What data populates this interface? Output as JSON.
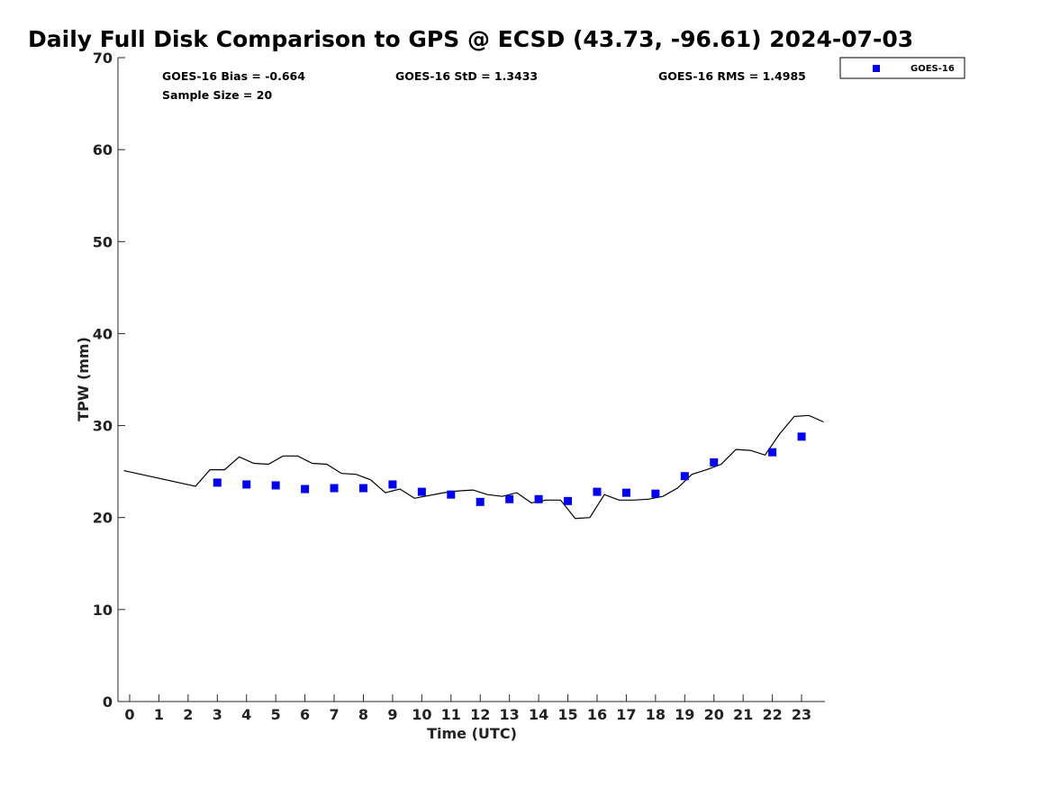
{
  "chart_data": {
    "type": "scatter",
    "title": "Daily Full Disk Comparison to GPS @ ECSD (43.73, -96.61) 2024-07-03",
    "xlabel": "Time (UTC)",
    "ylabel": "TPW (mm)",
    "xlim": [
      -0.4,
      23.8
    ],
    "ylim": [
      0,
      70
    ],
    "x_ticks": [
      "0",
      "1",
      "2",
      "3",
      "4",
      "5",
      "6",
      "7",
      "8",
      "9",
      "10",
      "11",
      "12",
      "13",
      "14",
      "15",
      "16",
      "17",
      "18",
      "19",
      "20",
      "21",
      "22",
      "23"
    ],
    "y_ticks": [
      "0",
      "10",
      "20",
      "30",
      "40",
      "50",
      "60",
      "70"
    ],
    "grid": false,
    "legend_position": "top-right",
    "stats": {
      "bias": "GOES-16 Bias = -0.664",
      "std": "GOES-16 StD = 1.3433",
      "rms": "GOES-16 RMS = 1.4985",
      "sample_size": "Sample Size = 20"
    },
    "series": [
      {
        "name": "GOES-16",
        "kind": "scatter",
        "marker": "square",
        "color": "#0000ee",
        "x": [
          3,
          4,
          5,
          6,
          7,
          8,
          9,
          10,
          11,
          12,
          13,
          14,
          15,
          16,
          17,
          18,
          19,
          20,
          22,
          23
        ],
        "y": [
          23.8,
          23.6,
          23.5,
          23.1,
          23.2,
          23.2,
          23.6,
          22.8,
          22.5,
          21.7,
          22.0,
          22.0,
          21.8,
          22.8,
          22.7,
          22.6,
          24.5,
          26.0,
          27.1,
          28.8
        ]
      },
      {
        "kind": "line",
        "color": "#000000",
        "x": [
          -0.2,
          2.25,
          2.75,
          3.25,
          3.75,
          4.25,
          4.75,
          5.25,
          5.75,
          6.25,
          6.75,
          7.25,
          7.75,
          8.25,
          8.75,
          9.25,
          9.75,
          10.25,
          10.75,
          11.25,
          11.75,
          12.25,
          12.75,
          13.25,
          13.75,
          14.25,
          14.75,
          15.25,
          15.75,
          16.25,
          16.75,
          17.25,
          17.75,
          18.25,
          18.75,
          19.25,
          19.75,
          20.25,
          20.75,
          21.25,
          21.75,
          22.25,
          22.75,
          23.25,
          23.75
        ],
        "y": [
          25.1,
          23.4,
          25.2,
          25.2,
          26.6,
          25.9,
          25.8,
          26.7,
          26.7,
          25.9,
          25.8,
          24.8,
          24.7,
          24.1,
          22.7,
          23.1,
          22.1,
          22.4,
          22.7,
          22.9,
          23.0,
          22.5,
          22.3,
          22.7,
          21.6,
          21.9,
          21.9,
          19.9,
          20.0,
          22.5,
          21.9,
          21.9,
          22.0,
          22.3,
          23.2,
          24.7,
          25.2,
          25.8,
          27.4,
          27.3,
          26.8,
          29.1,
          31.0,
          31.1,
          30.4
        ]
      }
    ]
  }
}
